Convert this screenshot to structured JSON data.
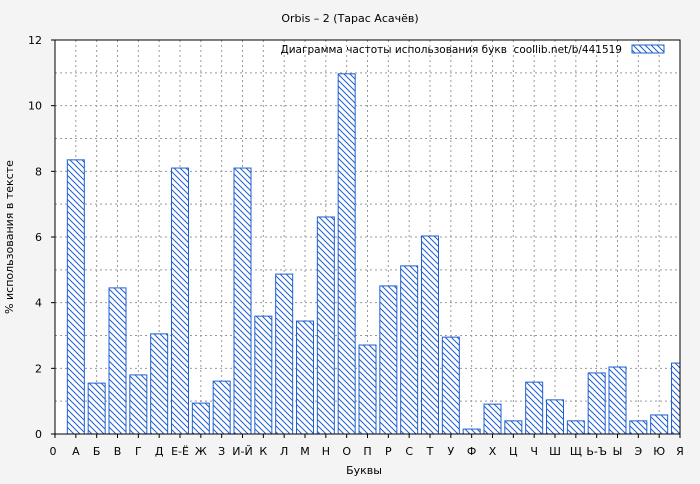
{
  "chart_data": {
    "type": "bar",
    "title": "Orbis – 2 (Тарас Асачёв)",
    "xlabel": "Буквы",
    "ylabel": "% использования в тексте",
    "legend": {
      "label": "Диаграмма частоты использования букв  coollib.net/b/441519",
      "placement": "top-right"
    },
    "origin_label": "0",
    "categories": [
      "А",
      "Б",
      "В",
      "Г",
      "Д",
      "Е-Ё",
      "Ж",
      "З",
      "И-Й",
      "К",
      "Л",
      "М",
      "Н",
      "О",
      "П",
      "Р",
      "С",
      "Т",
      "У",
      "Ф",
      "Х",
      "Ц",
      "Ч",
      "Ш",
      "Щ",
      "Ь-Ъ",
      "Ы",
      "Э",
      "Ю",
      "Я"
    ],
    "values": [
      8.35,
      1.55,
      4.45,
      1.8,
      3.05,
      8.1,
      0.94,
      1.61,
      8.1,
      3.59,
      4.87,
      3.44,
      6.61,
      10.97,
      2.71,
      4.51,
      5.12,
      6.03,
      2.95,
      0.15,
      0.91,
      0.4,
      1.58,
      1.04,
      0.4,
      1.86,
      2.04,
      0.4,
      0.58,
      2.16
    ],
    "ylim": [
      0,
      12
    ],
    "yticks": [
      0,
      2,
      4,
      6,
      8,
      10,
      12
    ],
    "grid": true,
    "bar_color": "#1f5fd0"
  }
}
